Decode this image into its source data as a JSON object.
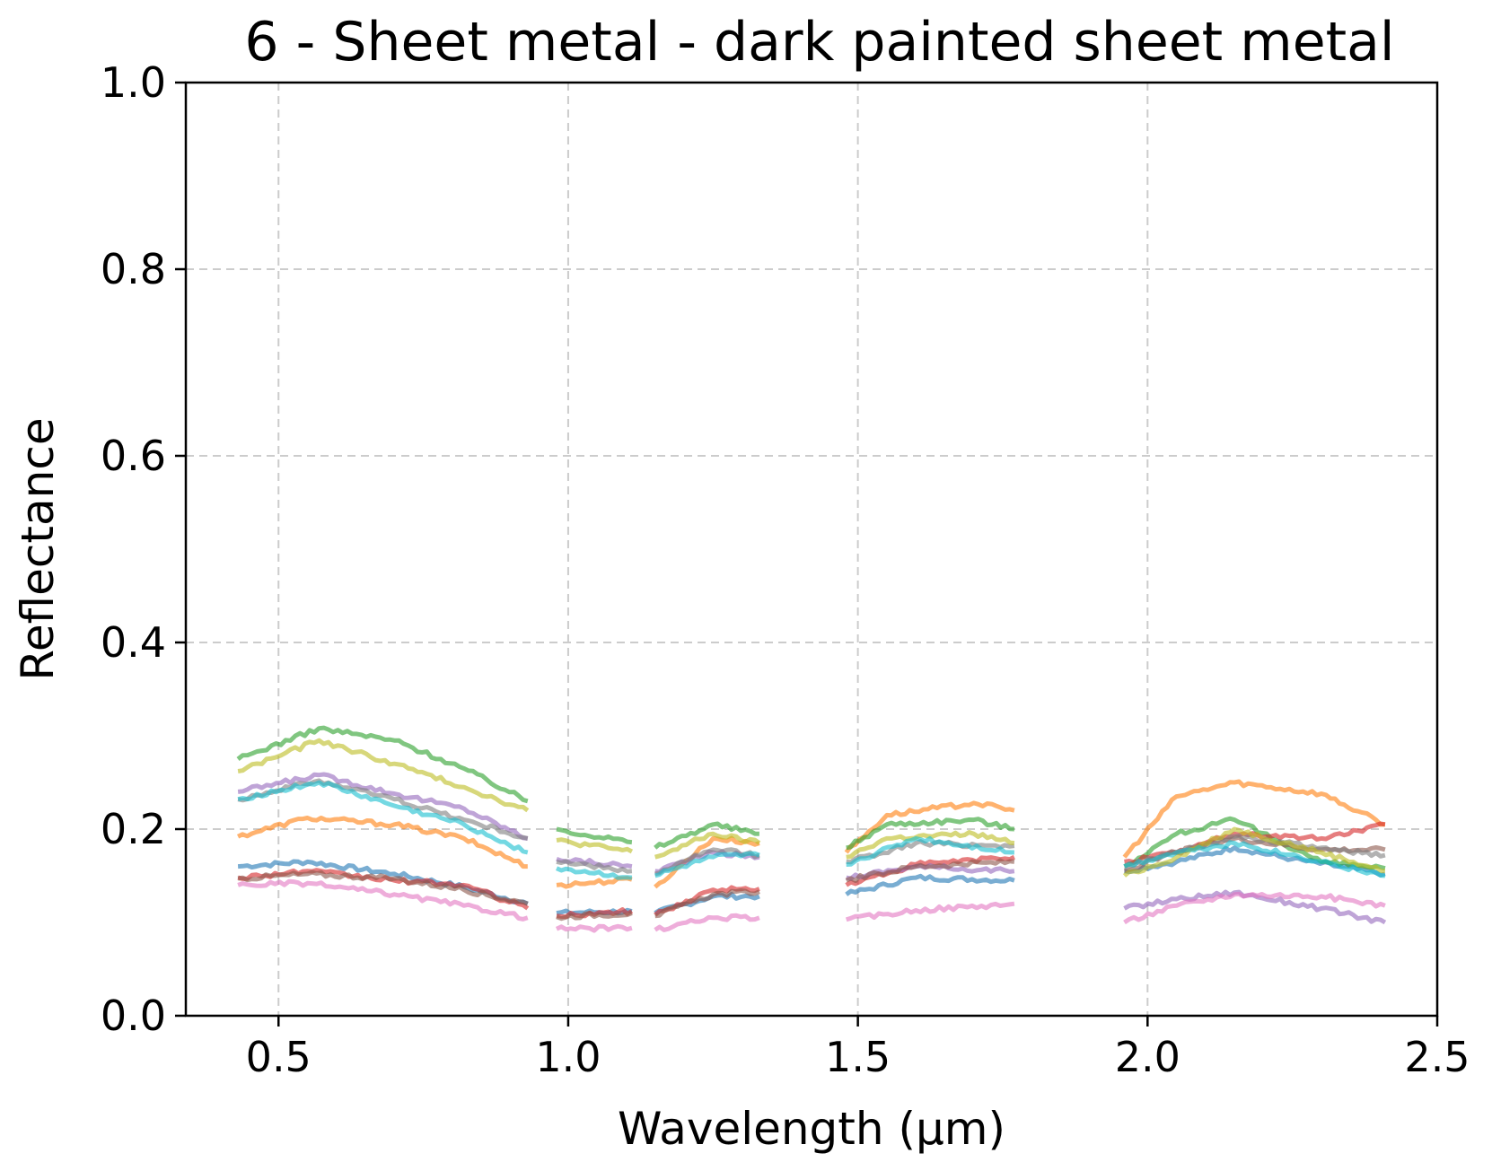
{
  "chart_data": {
    "type": "line",
    "title": "6 - Sheet metal - dark painted sheet metal",
    "xlabel": "Wavelength (µm)",
    "ylabel": "Reflectance",
    "xlim": [
      0.34,
      2.5
    ],
    "ylim": [
      0.0,
      1.0
    ],
    "xticks": [
      0.5,
      1.0,
      1.5,
      2.0,
      2.5
    ],
    "xtick_labels": [
      "0.5",
      "1.0",
      "1.5",
      "2.0",
      "2.5"
    ],
    "yticks": [
      0.0,
      0.2,
      0.4,
      0.6,
      0.8,
      1.0
    ],
    "ytick_labels": [
      "0.0",
      "0.2",
      "0.4",
      "0.6",
      "0.8",
      "1.0"
    ],
    "grid": true,
    "legend": "none",
    "line_opacity": 0.6,
    "segments": [
      [
        0.43,
        0.93
      ],
      [
        0.98,
        1.11
      ],
      [
        1.15,
        1.33
      ],
      [
        1.48,
        1.77
      ],
      [
        1.96,
        2.41
      ]
    ],
    "series": [
      {
        "color": "#1f77b4",
        "points": [
          [
            0.43,
            0.16
          ],
          [
            0.55,
            0.165
          ],
          [
            0.7,
            0.152
          ],
          [
            0.82,
            0.138
          ],
          [
            0.93,
            0.12
          ],
          [
            0.98,
            0.11
          ],
          [
            1.11,
            0.112
          ],
          [
            1.15,
            0.11
          ],
          [
            1.25,
            0.128
          ],
          [
            1.33,
            0.128
          ],
          [
            1.48,
            0.13
          ],
          [
            1.6,
            0.148
          ],
          [
            1.77,
            0.145
          ],
          [
            1.96,
            0.155
          ],
          [
            2.05,
            0.165
          ],
          [
            2.15,
            0.18
          ],
          [
            2.25,
            0.168
          ],
          [
            2.41,
            0.152
          ]
        ]
      },
      {
        "color": "#ff7f0e",
        "points": [
          [
            0.43,
            0.192
          ],
          [
            0.55,
            0.212
          ],
          [
            0.7,
            0.205
          ],
          [
            0.82,
            0.19
          ],
          [
            0.93,
            0.16
          ],
          [
            0.98,
            0.14
          ],
          [
            1.11,
            0.146
          ],
          [
            1.15,
            0.138
          ],
          [
            1.25,
            0.19
          ],
          [
            1.33,
            0.185
          ],
          [
            1.48,
            0.175
          ],
          [
            1.55,
            0.215
          ],
          [
            1.7,
            0.228
          ],
          [
            1.77,
            0.22
          ],
          [
            1.96,
            0.17
          ],
          [
            2.05,
            0.235
          ],
          [
            2.15,
            0.25
          ],
          [
            2.3,
            0.238
          ],
          [
            2.41,
            0.205
          ]
        ]
      },
      {
        "color": "#2ca02c",
        "points": [
          [
            0.43,
            0.275
          ],
          [
            0.57,
            0.308
          ],
          [
            0.7,
            0.295
          ],
          [
            0.82,
            0.265
          ],
          [
            0.93,
            0.23
          ],
          [
            0.98,
            0.2
          ],
          [
            1.11,
            0.186
          ],
          [
            1.15,
            0.18
          ],
          [
            1.25,
            0.205
          ],
          [
            1.33,
            0.195
          ],
          [
            1.48,
            0.18
          ],
          [
            1.55,
            0.205
          ],
          [
            1.7,
            0.21
          ],
          [
            1.77,
            0.2
          ],
          [
            1.96,
            0.16
          ],
          [
            2.05,
            0.195
          ],
          [
            2.15,
            0.21
          ],
          [
            2.3,
            0.165
          ],
          [
            2.41,
            0.158
          ]
        ]
      },
      {
        "color": "#d62728",
        "points": [
          [
            0.43,
            0.148
          ],
          [
            0.55,
            0.155
          ],
          [
            0.7,
            0.145
          ],
          [
            0.82,
            0.14
          ],
          [
            0.93,
            0.115
          ],
          [
            0.98,
            0.107
          ],
          [
            1.11,
            0.112
          ],
          [
            1.15,
            0.108
          ],
          [
            1.25,
            0.135
          ],
          [
            1.33,
            0.136
          ],
          [
            1.48,
            0.14
          ],
          [
            1.6,
            0.162
          ],
          [
            1.77,
            0.17
          ],
          [
            1.96,
            0.165
          ],
          [
            2.05,
            0.175
          ],
          [
            2.15,
            0.195
          ],
          [
            2.3,
            0.19
          ],
          [
            2.41,
            0.205
          ]
        ]
      },
      {
        "color": "#9467bd",
        "points": [
          [
            0.43,
            0.24
          ],
          [
            0.57,
            0.258
          ],
          [
            0.7,
            0.238
          ],
          [
            0.82,
            0.222
          ],
          [
            0.93,
            0.19
          ],
          [
            0.98,
            0.168
          ],
          [
            1.11,
            0.16
          ],
          [
            1.15,
            0.155
          ],
          [
            1.25,
            0.175
          ],
          [
            1.33,
            0.17
          ],
          [
            1.48,
            0.148
          ],
          [
            1.6,
            0.16
          ],
          [
            1.77,
            0.155
          ],
          [
            1.96,
            0.115
          ],
          [
            2.05,
            0.125
          ],
          [
            2.15,
            0.132
          ],
          [
            2.3,
            0.115
          ],
          [
            2.41,
            0.1
          ]
        ]
      },
      {
        "color": "#8c564b",
        "points": [
          [
            0.43,
            0.147
          ],
          [
            0.55,
            0.152
          ],
          [
            0.7,
            0.147
          ],
          [
            0.82,
            0.135
          ],
          [
            0.93,
            0.12
          ],
          [
            0.98,
            0.106
          ],
          [
            1.11,
            0.11
          ],
          [
            1.15,
            0.107
          ],
          [
            1.25,
            0.13
          ],
          [
            1.33,
            0.133
          ],
          [
            1.48,
            0.145
          ],
          [
            1.6,
            0.16
          ],
          [
            1.77,
            0.165
          ],
          [
            1.96,
            0.155
          ],
          [
            2.05,
            0.175
          ],
          [
            2.15,
            0.19
          ],
          [
            2.3,
            0.178
          ],
          [
            2.41,
            0.178
          ]
        ]
      },
      {
        "color": "#e377c2",
        "points": [
          [
            0.43,
            0.14
          ],
          [
            0.55,
            0.142
          ],
          [
            0.7,
            0.13
          ],
          [
            0.82,
            0.118
          ],
          [
            0.93,
            0.105
          ],
          [
            0.98,
            0.093
          ],
          [
            1.11,
            0.094
          ],
          [
            1.15,
            0.092
          ],
          [
            1.25,
            0.105
          ],
          [
            1.33,
            0.105
          ],
          [
            1.48,
            0.103
          ],
          [
            1.6,
            0.113
          ],
          [
            1.77,
            0.12
          ],
          [
            1.96,
            0.1
          ],
          [
            2.05,
            0.118
          ],
          [
            2.15,
            0.13
          ],
          [
            2.3,
            0.128
          ],
          [
            2.41,
            0.118
          ]
        ]
      },
      {
        "color": "#7f7f7f",
        "points": [
          [
            0.43,
            0.232
          ],
          [
            0.57,
            0.252
          ],
          [
            0.7,
            0.232
          ],
          [
            0.82,
            0.21
          ],
          [
            0.93,
            0.19
          ],
          [
            0.98,
            0.165
          ],
          [
            1.11,
            0.155
          ],
          [
            1.15,
            0.152
          ],
          [
            1.25,
            0.178
          ],
          [
            1.33,
            0.172
          ],
          [
            1.48,
            0.165
          ],
          [
            1.6,
            0.185
          ],
          [
            1.77,
            0.182
          ],
          [
            1.96,
            0.16
          ],
          [
            2.05,
            0.175
          ],
          [
            2.15,
            0.192
          ],
          [
            2.3,
            0.18
          ],
          [
            2.41,
            0.172
          ]
        ]
      },
      {
        "color": "#bcbd22",
        "points": [
          [
            0.43,
            0.262
          ],
          [
            0.57,
            0.295
          ],
          [
            0.7,
            0.27
          ],
          [
            0.82,
            0.245
          ],
          [
            0.93,
            0.22
          ],
          [
            0.98,
            0.188
          ],
          [
            1.11,
            0.176
          ],
          [
            1.15,
            0.17
          ],
          [
            1.25,
            0.195
          ],
          [
            1.33,
            0.185
          ],
          [
            1.48,
            0.17
          ],
          [
            1.55,
            0.19
          ],
          [
            1.7,
            0.195
          ],
          [
            1.77,
            0.185
          ],
          [
            1.96,
            0.15
          ],
          [
            2.05,
            0.17
          ],
          [
            2.15,
            0.2
          ],
          [
            2.3,
            0.175
          ],
          [
            2.41,
            0.155
          ]
        ]
      },
      {
        "color": "#17becf",
        "points": [
          [
            0.43,
            0.232
          ],
          [
            0.57,
            0.25
          ],
          [
            0.7,
            0.225
          ],
          [
            0.82,
            0.205
          ],
          [
            0.93,
            0.175
          ],
          [
            0.98,
            0.158
          ],
          [
            1.11,
            0.148
          ],
          [
            1.15,
            0.15
          ],
          [
            1.25,
            0.17
          ],
          [
            1.33,
            0.172
          ],
          [
            1.48,
            0.162
          ],
          [
            1.6,
            0.19
          ],
          [
            1.77,
            0.175
          ],
          [
            1.96,
            0.16
          ],
          [
            2.05,
            0.175
          ],
          [
            2.15,
            0.185
          ],
          [
            2.3,
            0.165
          ],
          [
            2.41,
            0.15
          ]
        ]
      }
    ]
  }
}
